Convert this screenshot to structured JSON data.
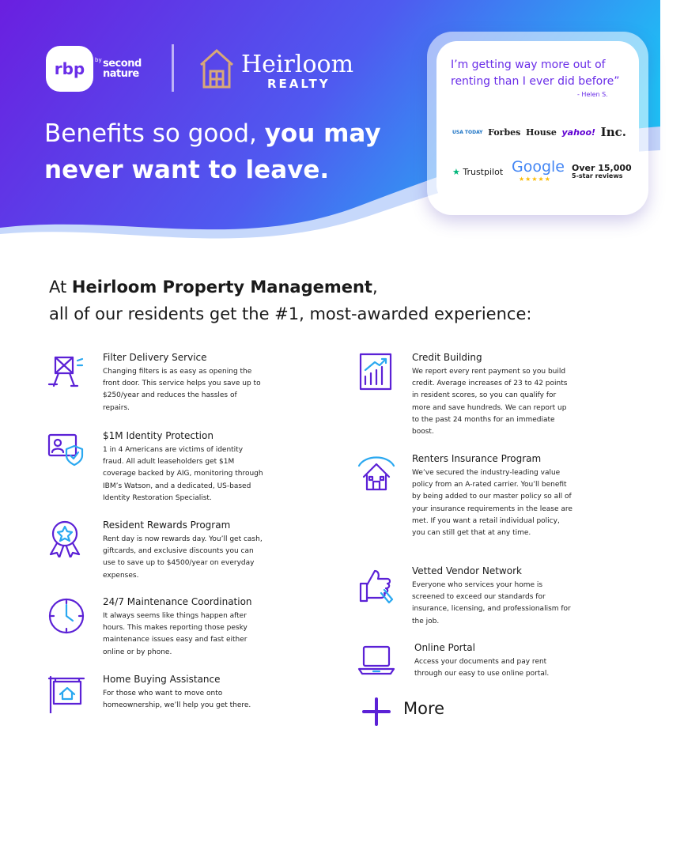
{
  "header": {
    "logo_rbp": "rbp",
    "logo_by": "by",
    "logo_second_nature": "second nature",
    "logo_heirloom": "Heirloom",
    "logo_realty": "REALTY",
    "headline_regular": "Benefits so good,",
    "headline_bold_1": "you may",
    "headline_bold_2": "never want to leave."
  },
  "testimonial": {
    "quote": "I’m getting way more out of renting than I ever did before”",
    "author": "- Helen S.",
    "press": [
      "USA TODAY",
      "Forbes",
      "House",
      "yahoo!",
      "Inc."
    ],
    "trustpilot": "Trustpilot",
    "google": "Google",
    "stars": "★★★★★",
    "reviews_count": "Over 15,000",
    "reviews_label": "5-star reviews"
  },
  "intro": {
    "prefix": "At",
    "company": "Heirloom Property Management",
    "suffix": ",",
    "line2": "all of our residents get the #1, most-awarded experience:"
  },
  "benefits": {
    "left": [
      {
        "title": "Filter Delivery Service",
        "text": "Changing filters is as easy as opening the front door. This service helps you save up to $250/year and reduces the hassles of repairs."
      },
      {
        "title": "$1M Identity Protection",
        "text": "1 in 4 Americans are victims of identity fraud. All adult leaseholders get $1M coverage backed by AIG, monitoring through IBM’s Watson, and a dedicated, US-based Identity Restoration Specialist."
      },
      {
        "title": "Resident Rewards Program",
        "text": "Rent day is now rewards day. You’ll get cash, giftcards, and exclusive discounts you can use to save up to $4500/year on everyday expenses."
      },
      {
        "title": "24/7 Maintenance Coordination",
        "text": "It always seems like things happen after hours. This makes reporting those pesky maintenance issues easy and fast either online or by phone."
      },
      {
        "title": "Home Buying Assistance",
        "text": "For those who want to move onto homeownership, we’ll help you get there."
      }
    ],
    "right": [
      {
        "title": "Credit Building",
        "text": "We report every rent payment so you build credit. Average increases of 23 to 42 points in resident scores, so you can qualify for more and save hundreds. We can report up to the past 24 months for an immediate boost."
      },
      {
        "title": "Renters Insurance Program",
        "text": "We’ve secured the industry-leading value policy from an A-rated carrier. You’ll benefit by being added to our master policy so all of your insurance requirements in the lease are met. If you want a retail individual policy, you can still get that at any time."
      },
      {
        "title": "Vetted Vendor Network",
        "text": "Everyone who services your home is screened to exceed our standards for insurance, licensing, and professionalism for the job."
      },
      {
        "title": "Online Portal",
        "text": "Access your documents and pay rent through our easy to use online portal."
      }
    ],
    "more": "More"
  }
}
